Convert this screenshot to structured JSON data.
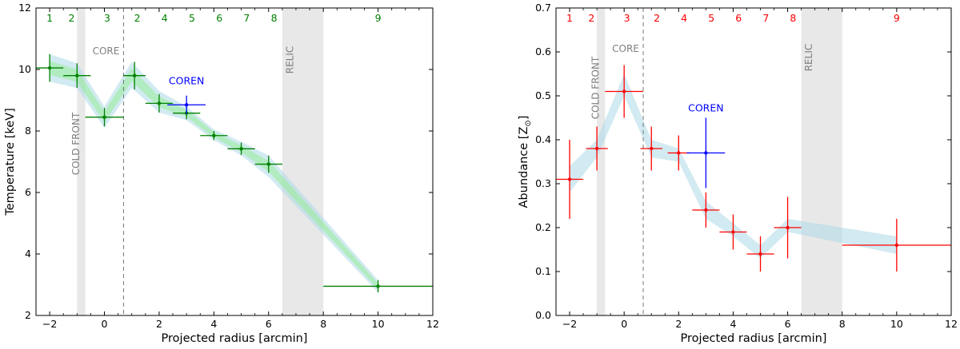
{
  "chart_data": [
    {
      "type": "scatter",
      "title": "",
      "xlabel": "Projected radius [arcmin]",
      "ylabel": "Temperature [keV]",
      "xlim": [
        -2.5,
        12
      ],
      "ylim": [
        2,
        12
      ],
      "xticks": [
        -2,
        0,
        2,
        4,
        6,
        8,
        10,
        12
      ],
      "yticks": [
        2,
        4,
        6,
        8,
        10,
        12
      ],
      "color": "#008000",
      "coren_color": "#0000ff",
      "band_color": "#add8e6",
      "band_color2": "#90ee90",
      "region_labels": [
        {
          "text": "1",
          "x": -2
        },
        {
          "text": "2",
          "x": -1.2
        },
        {
          "text": "3",
          "x": 0.1
        },
        {
          "text": "2",
          "x": 1.2
        },
        {
          "text": "4",
          "x": 2.2
        },
        {
          "text": "5",
          "x": 3.2
        },
        {
          "text": "6",
          "x": 4.2
        },
        {
          "text": "7",
          "x": 5.2
        },
        {
          "text": "8",
          "x": 6.2
        },
        {
          "text": "9",
          "x": 10
        }
      ],
      "shaded_regions": [
        {
          "name": "COLD FRONT",
          "x0": -1.0,
          "x1": -0.7
        },
        {
          "name": "RELIC",
          "x0": 6.5,
          "x1": 8.0
        }
      ],
      "core_line_x": 0.7,
      "annotations": {
        "cold_front": "COLD FRONT",
        "core": "CORE",
        "relic": "RELIC",
        "coren": "COREN"
      },
      "points": [
        {
          "x": -2.0,
          "y": 10.05,
          "xerr": 0.5,
          "yerr": 0.45
        },
        {
          "x": -1.0,
          "y": 9.8,
          "xerr": 0.5,
          "yerr": 0.4
        },
        {
          "x": 0.0,
          "y": 8.45,
          "xerr": 0.7,
          "yerr": 0.3
        },
        {
          "x": 1.1,
          "y": 9.8,
          "xerr": 0.4,
          "yerr": 0.45
        },
        {
          "x": 2.0,
          "y": 8.9,
          "xerr": 0.5,
          "yerr": 0.3
        },
        {
          "x": 3.0,
          "y": 8.58,
          "xerr": 0.5,
          "yerr": 0.2
        },
        {
          "x": 4.0,
          "y": 7.85,
          "xerr": 0.5,
          "yerr": 0.15
        },
        {
          "x": 5.0,
          "y": 7.42,
          "xerr": 0.5,
          "yerr": 0.2
        },
        {
          "x": 6.0,
          "y": 6.92,
          "xerr": 0.5,
          "yerr": 0.28
        },
        {
          "x": 10.0,
          "y": 2.95,
          "xerr": 2.0,
          "yerr": 0.2
        }
      ],
      "coren_point": {
        "x": 3.0,
        "y": 8.85,
        "xerr": 0.7,
        "yerr": 0.3
      },
      "band": {
        "x": [
          -2.0,
          -1.0,
          0.0,
          1.0,
          2.0,
          3.0,
          4.0,
          5.0,
          6.0,
          10.0
        ],
        "lower": [
          9.6,
          9.4,
          8.1,
          9.4,
          8.6,
          8.35,
          7.7,
          7.2,
          6.5,
          2.75
        ],
        "upper": [
          10.5,
          10.2,
          8.8,
          10.25,
          9.3,
          8.8,
          8.05,
          7.65,
          7.2,
          3.15
        ]
      }
    },
    {
      "type": "scatter",
      "title": "",
      "xlabel": "Projected radius [arcmin]",
      "ylabel": "Abundance [Z",
      "ylabel_sub": "⊙",
      "ylabel_end": "]",
      "xlim": [
        -2.5,
        12
      ],
      "ylim": [
        0.0,
        0.7
      ],
      "xticks": [
        -2,
        0,
        2,
        4,
        6,
        8,
        10,
        12
      ],
      "yticks": [
        0.0,
        0.1,
        0.2,
        0.3,
        0.4,
        0.5,
        0.6,
        0.7
      ],
      "color": "#ff0000",
      "coren_color": "#0000ff",
      "band_color": "#add8e6",
      "region_labels": [
        {
          "text": "1",
          "x": -2
        },
        {
          "text": "2",
          "x": -1.2
        },
        {
          "text": "3",
          "x": 0.1
        },
        {
          "text": "2",
          "x": 1.2
        },
        {
          "text": "4",
          "x": 2.2
        },
        {
          "text": "5",
          "x": 3.2
        },
        {
          "text": "6",
          "x": 4.2
        },
        {
          "text": "7",
          "x": 5.2
        },
        {
          "text": "8",
          "x": 6.2
        },
        {
          "text": "9",
          "x": 10
        }
      ],
      "shaded_regions": [
        {
          "name": "COLD FRONT",
          "x0": -1.0,
          "x1": -0.7
        },
        {
          "name": "RELIC",
          "x0": 6.5,
          "x1": 8.0
        }
      ],
      "core_line_x": 0.7,
      "annotations": {
        "cold_front": "COLD FRONT",
        "core": "CORE",
        "relic": "RELIC",
        "coren": "COREN"
      },
      "points": [
        {
          "x": -2.0,
          "y": 0.31,
          "xerr": 0.5,
          "yerr": 0.09
        },
        {
          "x": -1.0,
          "y": 0.38,
          "xerr": 0.4,
          "yerr": 0.05
        },
        {
          "x": 0.0,
          "y": 0.51,
          "xerr": 0.7,
          "yerr": 0.06
        },
        {
          "x": 1.0,
          "y": 0.38,
          "xerr": 0.4,
          "yerr": 0.05
        },
        {
          "x": 2.0,
          "y": 0.37,
          "xerr": 0.4,
          "yerr": 0.04
        },
        {
          "x": 3.0,
          "y": 0.24,
          "xerr": 0.5,
          "yerr": 0.04
        },
        {
          "x": 4.0,
          "y": 0.19,
          "xerr": 0.5,
          "yerr": 0.04
        },
        {
          "x": 5.0,
          "y": 0.14,
          "xerr": 0.5,
          "yerr": 0.04
        },
        {
          "x": 6.0,
          "y": 0.2,
          "xerr": 0.5,
          "yerr": 0.07
        },
        {
          "x": 10.0,
          "y": 0.16,
          "xerr": 2.0,
          "yerr": 0.06
        }
      ],
      "coren_point": {
        "x": 3.0,
        "y": 0.37,
        "xerr": 0.7,
        "yerr": 0.08
      },
      "band": {
        "x": [
          -2.0,
          -1.0,
          0.0,
          1.0,
          2.0,
          3.0,
          4.0,
          5.0,
          6.0,
          10.0
        ],
        "lower": [
          0.28,
          0.36,
          0.5,
          0.36,
          0.35,
          0.22,
          0.18,
          0.13,
          0.19,
          0.14
        ],
        "upper": [
          0.34,
          0.4,
          0.55,
          0.4,
          0.38,
          0.26,
          0.21,
          0.16,
          0.22,
          0.18
        ]
      }
    }
  ]
}
